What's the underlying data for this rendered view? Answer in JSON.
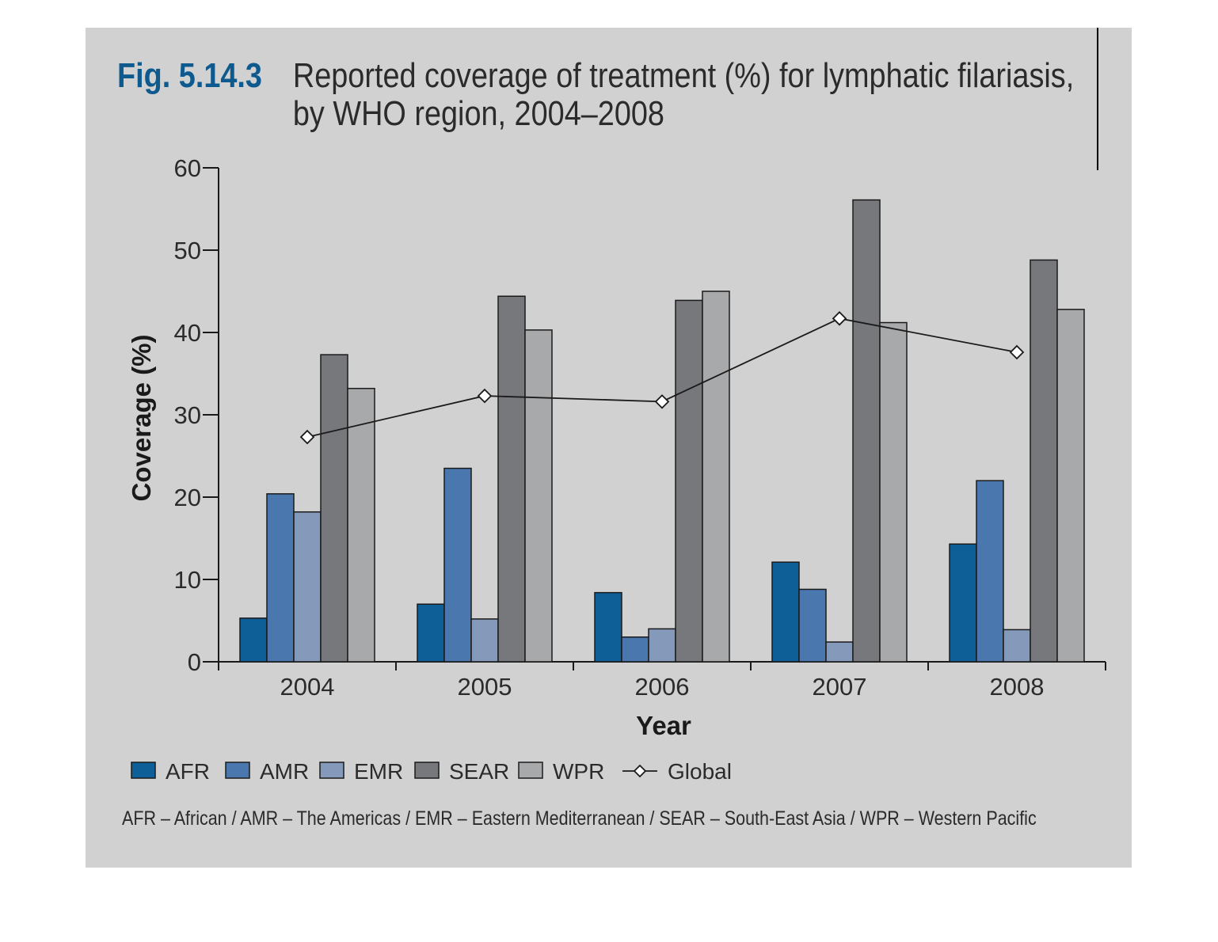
{
  "figure": {
    "label": "Fig. 5.14.3",
    "title_line1": "Reported coverage of treatment (%) for lymphatic filariasis,",
    "title_line2": "by WHO region, 2004–2008"
  },
  "footnote": "AFR – African / AMR – The Americas / EMR – Eastern Mediterranean / SEAR – South-East Asia / WPR – Western Pacific",
  "colors": {
    "AFR": "#0e5f97",
    "AMR": "#4a78ae",
    "EMR": "#8599bb",
    "SEAR": "#77787c",
    "WPR": "#a8a9ab",
    "Global": "#1a1a1a"
  },
  "chart_data": {
    "type": "bar",
    "title": "Reported coverage of treatment (%) for lymphatic filariasis, by WHO region, 2004–2008",
    "xlabel": "Year",
    "ylabel": "Coverage (%)",
    "ylim": [
      0,
      60
    ],
    "yticks": [
      0,
      10,
      20,
      30,
      40,
      50,
      60
    ],
    "categories": [
      "2004",
      "2005",
      "2006",
      "2007",
      "2008"
    ],
    "series": [
      {
        "name": "AFR",
        "values": [
          5.3,
          7.0,
          8.4,
          12.1,
          14.3
        ]
      },
      {
        "name": "AMR",
        "values": [
          20.4,
          23.5,
          3.0,
          8.8,
          22.0
        ]
      },
      {
        "name": "EMR",
        "values": [
          18.2,
          5.2,
          4.0,
          2.4,
          3.9
        ]
      },
      {
        "name": "SEAR",
        "values": [
          37.3,
          44.4,
          43.9,
          56.1,
          48.8
        ]
      },
      {
        "name": "WPR",
        "values": [
          33.2,
          40.3,
          45.0,
          41.2,
          42.8
        ]
      }
    ],
    "line_series": [
      {
        "name": "Global",
        "values": [
          27.3,
          32.3,
          31.6,
          41.7,
          37.6
        ],
        "marker": "diamond"
      }
    ],
    "legend_position": "bottom-left",
    "grid": false
  }
}
